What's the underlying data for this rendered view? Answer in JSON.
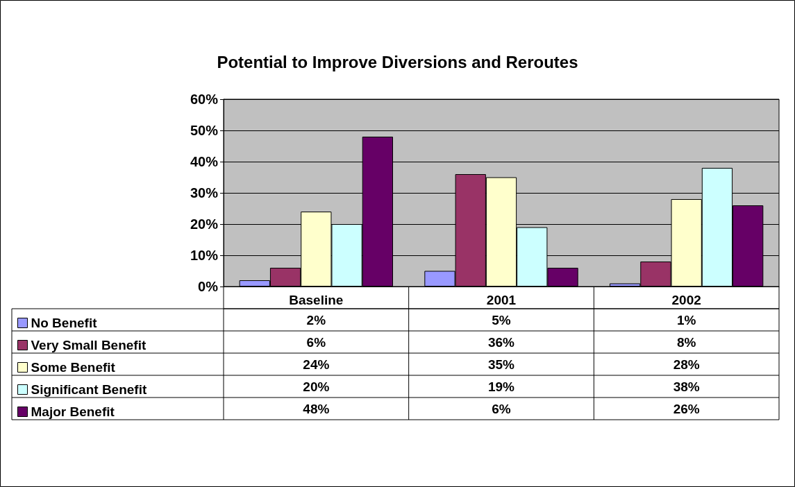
{
  "chart_data": {
    "type": "bar",
    "title": "Potential to Improve Diversions and Reroutes",
    "categories": [
      "Baseline",
      "2001",
      "2002"
    ],
    "series": [
      {
        "name": "No Benefit",
        "color": "#9999ff",
        "values": [
          2,
          5,
          1
        ],
        "value_labels": [
          "2%",
          "5%",
          "1%"
        ]
      },
      {
        "name": "Very Small Benefit",
        "color": "#993366",
        "values": [
          6,
          36,
          8
        ],
        "value_labels": [
          "6%",
          "36%",
          "8%"
        ]
      },
      {
        "name": "Some Benefit",
        "color": "#ffffcc",
        "values": [
          24,
          35,
          28
        ],
        "value_labels": [
          "24%",
          "35%",
          "28%"
        ]
      },
      {
        "name": "Significant Benefit",
        "color": "#ccffff",
        "values": [
          20,
          19,
          38
        ],
        "value_labels": [
          "20%",
          "19%",
          "38%"
        ]
      },
      {
        "name": "Major Benefit",
        "color": "#660066",
        "values": [
          48,
          6,
          26
        ],
        "value_labels": [
          "48%",
          "6%",
          "26%"
        ]
      }
    ],
    "ylim": [
      0,
      60
    ],
    "yticks": [
      {
        "value": 0,
        "label": "0%"
      },
      {
        "value": 10,
        "label": "10%"
      },
      {
        "value": 20,
        "label": "20%"
      },
      {
        "value": 30,
        "label": "30%"
      },
      {
        "value": 40,
        "label": "40%"
      },
      {
        "value": 50,
        "label": "50%"
      },
      {
        "value": 60,
        "label": "60%"
      }
    ],
    "grid": "y",
    "legend": "bottom left"
  }
}
